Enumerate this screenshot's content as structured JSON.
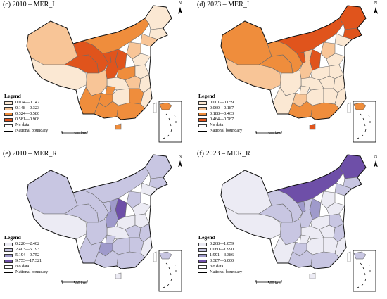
{
  "panels": [
    {
      "id": "c",
      "title": "(c) 2010 – MER_I",
      "legend_title": "Legend",
      "classes": [
        {
          "label": "0.074—0.147",
          "color": "#fbe8d3"
        },
        {
          "label": "0.148—0.323",
          "color": "#f8c597"
        },
        {
          "label": "0.324—0.580",
          "color": "#ef8d3c"
        },
        {
          "label": "0.581—0.908",
          "color": "#e0541c"
        }
      ],
      "no_data_label": "No data",
      "boundary_label": "National boundary",
      "scale_zero": "0",
      "scale_label": "500 km",
      "north": "N"
    },
    {
      "id": "d",
      "title": "(d) 2023 – MER_I",
      "legend_title": "Legend",
      "classes": [
        {
          "label": "0.001—0.059",
          "color": "#fbe8d3"
        },
        {
          "label": "0.060—0.187",
          "color": "#f8c597"
        },
        {
          "label": "0.188—0.463",
          "color": "#ef8d3c"
        },
        {
          "label": "0.464—0.787",
          "color": "#e0541c"
        }
      ],
      "no_data_label": "No data",
      "boundary_label": "National boundary",
      "scale_zero": "0",
      "scale_label": "500 km",
      "north": "N"
    },
    {
      "id": "e",
      "title": "(e) 2010 – MER_R",
      "legend_title": "Legend",
      "classes": [
        {
          "label": "0.220—2.402",
          "color": "#ecebf4"
        },
        {
          "label": "2.403—5.193",
          "color": "#c8c6e2"
        },
        {
          "label": "5.194—9.752",
          "color": "#9f9acb"
        },
        {
          "label": "9.753—17.321",
          "color": "#6e4fa8"
        }
      ],
      "no_data_label": "No data",
      "boundary_label": "National boundary",
      "scale_zero": "0",
      "scale_label": "500 km",
      "north": "N"
    },
    {
      "id": "f",
      "title": "(f) 2023 – MER_R",
      "legend_title": "Legend",
      "classes": [
        {
          "label": "0.268—1.059",
          "color": "#ecebf4"
        },
        {
          "label": "1.060—1.990",
          "color": "#c8c6e2"
        },
        {
          "label": "1.991—3.386",
          "color": "#9f9acb"
        },
        {
          "label": "3.387—6.000",
          "color": "#6e4fa8"
        }
      ],
      "no_data_label": "No data",
      "boundary_label": "National boundary",
      "scale_zero": "0",
      "scale_label": "500 km",
      "north": "N"
    }
  ],
  "map_values": {
    "c": {
      "xinjiang": 2,
      "tibet": 1,
      "qinghai": 4,
      "gansu": 4,
      "ningxia": 4,
      "innermongolia": 3,
      "heilongjiang": 1,
      "jilin": 1,
      "liaoning": 2,
      "hebei": 2,
      "beijing": 2,
      "shanxi": 4,
      "shaanxi": 4,
      "henan": 3,
      "shandong": 1,
      "sichuan": 2,
      "chongqing": 3,
      "yunnan": 3,
      "guizhou": 3,
      "hubei": 1,
      "hunan": 1,
      "jiangxi": 3,
      "anhui": 2,
      "jiangsu": 1,
      "zhejiang": 1,
      "fujian": 1,
      "guangdong": 3,
      "guangxi": 3,
      "hainan": 3,
      "taiwan": 0,
      "southchinasea": 3
    },
    "d": {
      "xinjiang": 3,
      "tibet": 2,
      "qinghai": 3,
      "gansu": 3,
      "ningxia": 4,
      "innermongolia": 4,
      "heilongjiang": 4,
      "jilin": 4,
      "liaoning": 1,
      "hebei": 2,
      "beijing": 1,
      "shanxi": 4,
      "shaanxi": 2,
      "henan": 1,
      "shandong": 1,
      "sichuan": 1,
      "chongqing": 1,
      "yunnan": 1,
      "guizhou": 2,
      "hubei": 1,
      "hunan": 1,
      "jiangxi": 1,
      "anhui": 1,
      "jiangsu": 1,
      "zhejiang": 1,
      "fujian": 1,
      "guangdong": 3,
      "guangxi": 3,
      "hainan": 4,
      "taiwan": 0,
      "southchinasea": 3
    },
    "e": {
      "xinjiang": 2,
      "tibet": 1,
      "qinghai": 2,
      "gansu": 2,
      "ningxia": 2,
      "innermongolia": 2,
      "heilongjiang": 2,
      "jilin": 2,
      "liaoning": 1,
      "hebei": 2,
      "beijing": 1,
      "shanxi": 4,
      "shaanxi": 3,
      "henan": 1,
      "shandong": 1,
      "sichuan": 2,
      "chongqing": 2,
      "yunnan": 2,
      "guizhou": 3,
      "hubei": 1,
      "hunan": 2,
      "jiangxi": 2,
      "anhui": 2,
      "jiangsu": 1,
      "zhejiang": 2,
      "fujian": 1,
      "guangdong": 2,
      "guangxi": 2,
      "hainan": 1,
      "taiwan": 0,
      "southchinasea": 2
    },
    "f": {
      "xinjiang": 1,
      "tibet": 1,
      "qinghai": 2,
      "gansu": 2,
      "ningxia": 3,
      "innermongolia": 4,
      "heilongjiang": 4,
      "jilin": 2,
      "liaoning": 2,
      "hebei": 1,
      "beijing": 1,
      "shanxi": 3,
      "shaanxi": 2,
      "henan": 1,
      "shandong": 1,
      "sichuan": 2,
      "chongqing": 1,
      "yunnan": 1,
      "guizhou": 2,
      "hubei": 1,
      "hunan": 1,
      "jiangxi": 1,
      "anhui": 1,
      "jiangsu": 2,
      "zhejiang": 2,
      "fujian": 1,
      "guangdong": 2,
      "guangxi": 2,
      "hainan": 1,
      "taiwan": 0,
      "southchinasea": 2
    }
  }
}
